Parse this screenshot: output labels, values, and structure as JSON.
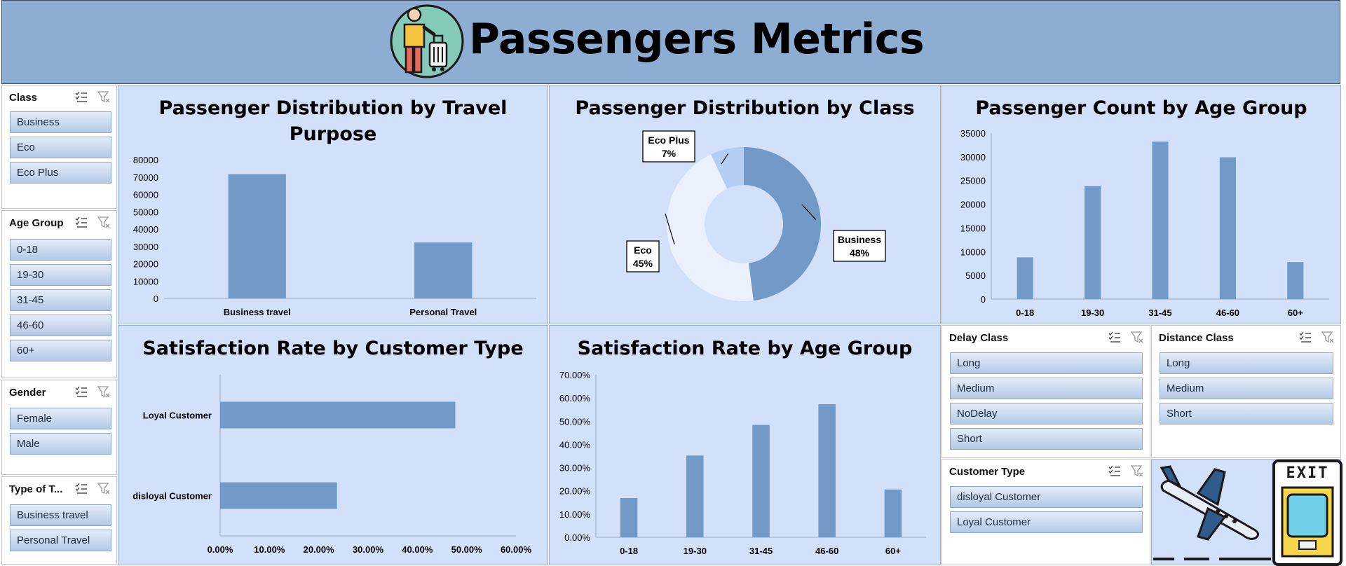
{
  "header": {
    "title": "Passengers Metrics",
    "logo_icon": "traveler-luggage-icon"
  },
  "slicers": {
    "class": {
      "title": "Class",
      "items": [
        "Business",
        "Eco",
        "Eco Plus"
      ]
    },
    "age_group": {
      "title": "Age Group",
      "items": [
        "0-18",
        "19-30",
        "31-45",
        "46-60",
        "60+"
      ]
    },
    "gender": {
      "title": "Gender",
      "items": [
        "Female",
        "Male"
      ]
    },
    "type_of_travel": {
      "title": "Type of T...",
      "items": [
        "Business travel",
        "Personal Travel"
      ]
    },
    "delay_class": {
      "title": "Delay Class",
      "items": [
        "Long",
        "Medium",
        "NoDelay",
        "Short"
      ]
    },
    "distance_class": {
      "title": "Distance Class",
      "items": [
        "Long",
        "Medium",
        "Short"
      ]
    },
    "customer_type": {
      "title": "Customer Type",
      "items": [
        "disloyal Customer",
        "Loyal Customer"
      ]
    }
  },
  "chart_data": [
    {
      "id": "travel_purpose",
      "type": "bar",
      "title": "Passenger Distribution by Travel Purpose",
      "title_lines": [
        "Passenger Distribution by Travel",
        "Purpose"
      ],
      "categories": [
        "Business travel",
        "Personal Travel"
      ],
      "values": [
        71655,
        32249
      ],
      "ylim": [
        0,
        80000
      ],
      "yticks": [
        "0",
        "10000",
        "20000",
        "30000",
        "40000",
        "50000",
        "60000",
        "70000",
        "80000"
      ],
      "color": "#7399c6"
    },
    {
      "id": "by_class",
      "type": "pie",
      "title": "Passenger Distribution by Class",
      "categories": [
        "Business",
        "Eco",
        "Eco Plus"
      ],
      "values": [
        48,
        45,
        7
      ],
      "labels": [
        "48%",
        "45%",
        "7%"
      ],
      "colors": [
        "#7399c6",
        "#eaf1fd",
        "#b3cdf4"
      ]
    },
    {
      "id": "age_group_count",
      "type": "bar",
      "title": "Passenger Count by Age Group",
      "categories": [
        "0-18",
        "19-30",
        "31-45",
        "46-60",
        "60+"
      ],
      "values": [
        8800,
        23800,
        33200,
        29900,
        7800
      ],
      "ylim": [
        0,
        35000
      ],
      "yticks": [
        "0",
        "5000",
        "10000",
        "15000",
        "20000",
        "25000",
        "30000",
        "35000"
      ],
      "color": "#7399c6"
    },
    {
      "id": "satisfaction_customer_type",
      "type": "bar",
      "orientation": "horizontal",
      "title": "Satisfaction Rate by Customer Type",
      "categories": [
        "Loyal Customer",
        "disloyal Customer"
      ],
      "values": [
        47.7,
        23.7
      ],
      "xlim": [
        0,
        60
      ],
      "xticks": [
        "0.00%",
        "10.00%",
        "20.00%",
        "30.00%",
        "40.00%",
        "50.00%",
        "60.00%"
      ],
      "color": "#7399c6"
    },
    {
      "id": "satisfaction_age_group",
      "type": "bar",
      "title": "Satisfaction Rate by Age Group",
      "categories": [
        "0-18",
        "19-30",
        "31-45",
        "46-60",
        "60+"
      ],
      "values": [
        16.9,
        35.2,
        48.4,
        57.3,
        20.6
      ],
      "ylim": [
        0,
        70
      ],
      "yticks": [
        "0.00%",
        "10.00%",
        "20.00%",
        "30.00%",
        "40.00%",
        "50.00%",
        "60.00%",
        "70.00%"
      ],
      "color": "#7399c6"
    }
  ],
  "icons": {
    "airplane": "airplane-icon",
    "exit": "exit-door-icon"
  },
  "exit_sign": "EXIT"
}
